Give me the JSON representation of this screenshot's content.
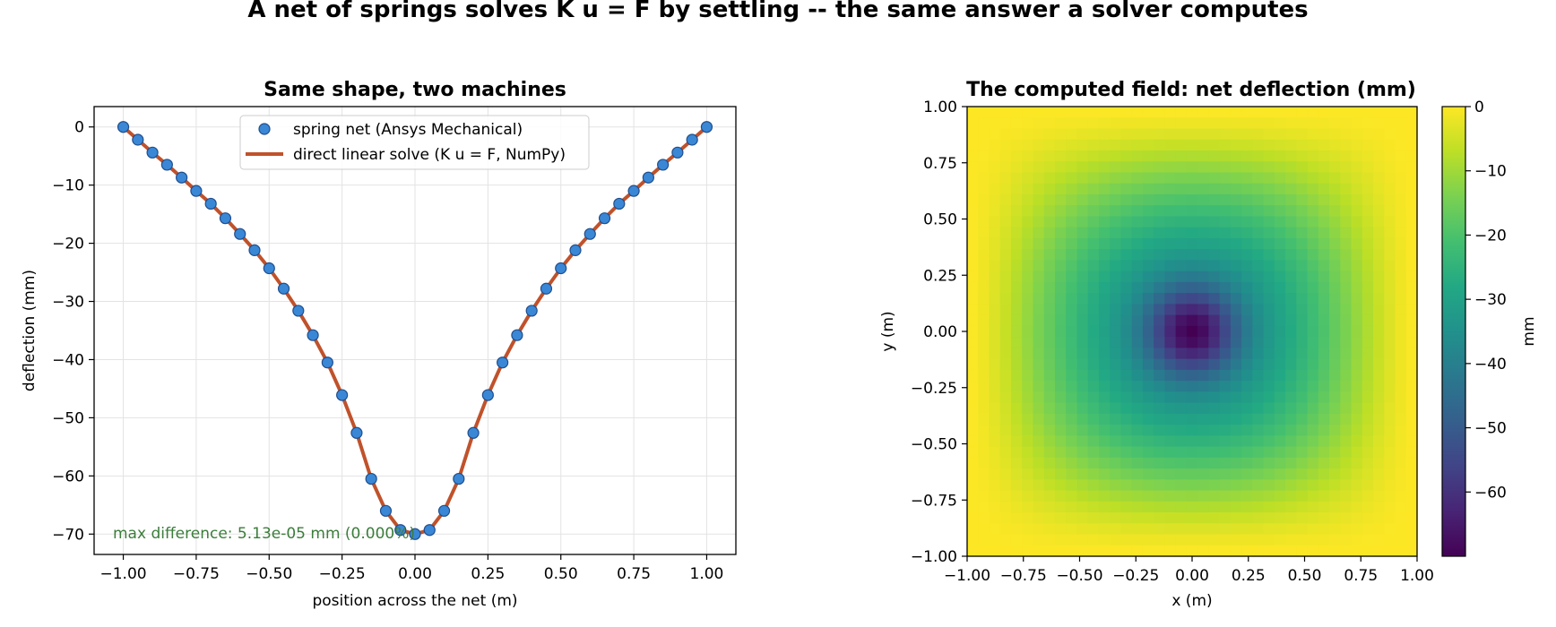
{
  "figure": {
    "suptitle": "A net of springs solves K u = F by settling -- the same answer a solver computes"
  },
  "chart_data": [
    {
      "type": "line",
      "title": "Same shape, two machines",
      "xlabel": "position across the net  (m)",
      "ylabel": "deflection  (mm)",
      "xlim": [
        -1.1,
        1.1
      ],
      "ylim": [
        -73.5,
        3.5
      ],
      "xticks": [
        "−1.00",
        "−0.75",
        "−0.50",
        "−0.25",
        "0.00",
        "0.25",
        "0.50",
        "0.75",
        "1.00"
      ],
      "yticks": [
        "0",
        "−10",
        "−20",
        "−30",
        "−40",
        "−50",
        "−60",
        "−70"
      ],
      "grid": true,
      "legend_position": "top-center",
      "x": [
        -1.0,
        -0.95,
        -0.9,
        -0.85,
        -0.8,
        -0.75,
        -0.7,
        -0.65,
        -0.6,
        -0.55,
        -0.5,
        -0.45,
        -0.4,
        -0.35,
        -0.3,
        -0.25,
        -0.2,
        -0.15,
        -0.1,
        -0.05,
        0.0,
        0.05,
        0.1,
        0.15,
        0.2,
        0.25,
        0.3,
        0.35,
        0.4,
        0.45,
        0.5,
        0.55,
        0.6,
        0.65,
        0.7,
        0.75,
        0.8,
        0.85,
        0.9,
        0.95,
        1.0
      ],
      "series": [
        {
          "name": "spring net (Ansys Mechanical)",
          "style": "markers",
          "color": "#3a87d6",
          "edge_color": "#1f4e8c",
          "values": [
            0.0,
            -2.2,
            -4.4,
            -6.5,
            -8.7,
            -11.0,
            -13.2,
            -15.7,
            -18.4,
            -21.2,
            -24.3,
            -27.8,
            -31.6,
            -35.8,
            -40.5,
            -46.1,
            -52.6,
            -60.5,
            -66.0,
            -69.3,
            -70.0,
            -69.3,
            -66.0,
            -60.5,
            -52.6,
            -46.1,
            -40.5,
            -35.8,
            -31.6,
            -27.8,
            -24.3,
            -21.2,
            -18.4,
            -15.7,
            -13.2,
            -11.0,
            -8.7,
            -6.5,
            -4.4,
            -2.2,
            0.0
          ]
        },
        {
          "name": "direct linear solve (K u = F, NumPy)",
          "style": "line",
          "color": "#c0522b",
          "values": [
            0.0,
            -2.2,
            -4.4,
            -6.5,
            -8.7,
            -11.0,
            -13.2,
            -15.7,
            -18.4,
            -21.2,
            -24.3,
            -27.8,
            -31.6,
            -35.8,
            -40.5,
            -46.1,
            -52.6,
            -60.5,
            -66.0,
            -69.3,
            -70.0,
            -69.3,
            -66.0,
            -60.5,
            -52.6,
            -46.1,
            -40.5,
            -35.8,
            -31.6,
            -27.8,
            -24.3,
            -21.2,
            -18.4,
            -15.7,
            -13.2,
            -11.0,
            -8.7,
            -6.5,
            -4.4,
            -2.2,
            0.0
          ]
        }
      ],
      "annotation": {
        "text": "max difference: 5.13e-05 mm  (0.000%)",
        "color": "#3a7d3a"
      }
    },
    {
      "type": "heatmap",
      "title": "The computed field: net deflection (mm)",
      "xlabel": "x (m)",
      "ylabel": "y (m)",
      "xlim": [
        -1.0,
        1.0
      ],
      "ylim": [
        -1.0,
        1.0
      ],
      "xticks": [
        "−1.00",
        "−0.75",
        "−0.50",
        "−0.25",
        "0.00",
        "0.25",
        "0.50",
        "0.75",
        "1.00"
      ],
      "yticks": [
        "1.00",
        "0.75",
        "0.50",
        "0.25",
        "0.00",
        "−0.25",
        "−0.50",
        "−0.75",
        "−1.00"
      ],
      "grid_size": 41,
      "colormap": "viridis",
      "vmin": -70.0,
      "vmax": 0.0,
      "center_value": -70.0,
      "boundary_value": 0.0,
      "colorbar": {
        "label": "mm",
        "ticks": [
          "0",
          "−10",
          "−20",
          "−30",
          "−40",
          "−50",
          "−60"
        ]
      }
    }
  ]
}
